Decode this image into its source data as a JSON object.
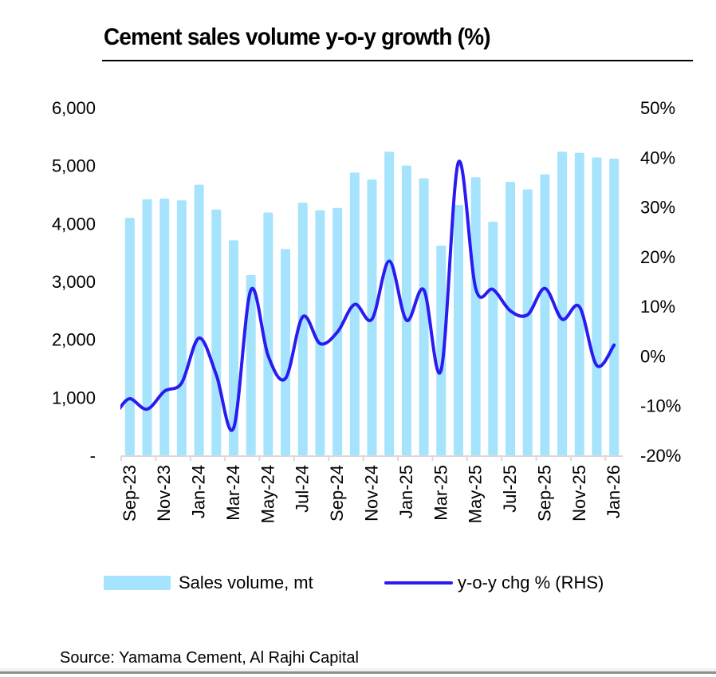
{
  "colors": {
    "bars": "#a6e3fd",
    "line": "#2a1cf0",
    "axis": "#d9d9d9",
    "text": "#000000"
  },
  "legend": {
    "bar_label": "Sales volume, mt",
    "line_label": "y-o-y chg % (RHS)"
  },
  "source": "Source: Yamama Cement, Al Rajhi Capital",
  "chart_data": {
    "type": "bar",
    "title": "Cement sales volume y-o-y growth (%)",
    "xlabel": "",
    "ylabel": "",
    "categories": [
      "Sep-23",
      "Oct-23",
      "Nov-23",
      "Dec-23",
      "Jan-24",
      "Feb-24",
      "Mar-24",
      "Apr-24",
      "May-24",
      "Jun-24",
      "Jul-24",
      "Aug-24",
      "Sep-24",
      "Oct-24",
      "Nov-24",
      "Dec-24",
      "Jan-25",
      "Feb-25",
      "Mar-25",
      "Apr-25",
      "May-25",
      "Jun-25",
      "Jul-25",
      "Aug-25",
      "Sep-25",
      "Oct-25",
      "Nov-25",
      "Dec-25",
      "Jan-26"
    ],
    "x_tick_labels": [
      "Sep-23",
      "Nov-23",
      "Jan-24",
      "Mar-24",
      "May-24",
      "Jul-24",
      "Sep-24",
      "Nov-24",
      "Jan-25",
      "Mar-25",
      "May-25",
      "Jul-25",
      "Sep-25",
      "Nov-25",
      "Jan-26"
    ],
    "series": [
      {
        "name": "Sales volume, mt",
        "type": "bar",
        "axis": "left",
        "values": [
          4100,
          4420,
          4430,
          4400,
          4670,
          4240,
          3710,
          3110,
          4190,
          3560,
          4360,
          4230,
          4270,
          4880,
          4760,
          5240,
          5000,
          4780,
          3620,
          4320,
          4800,
          4030,
          4720,
          4590,
          4850,
          5240,
          5220,
          5140,
          5120
        ]
      },
      {
        "name": "y-o-y chg % (RHS)",
        "type": "line",
        "axis": "right",
        "smooth": true,
        "values": [
          -8.6,
          -10.7,
          -7.1,
          -5.4,
          3.6,
          -3.8,
          -14.5,
          13.3,
          0.0,
          -4.5,
          7.9,
          2.5,
          4.8,
          10.4,
          7.4,
          19.1,
          7.2,
          13.3,
          -2.8,
          39.0,
          13.6,
          13.4,
          9.1,
          8.3,
          13.6,
          7.4,
          9.9,
          -1.9,
          2.2
        ]
      }
    ],
    "y_left": {
      "ylim": [
        0,
        6000
      ],
      "ticks": [
        0,
        1000,
        2000,
        3000,
        4000,
        5000,
        6000
      ],
      "tick_labels": [
        "-",
        "1,000",
        "2,000",
        "3,000",
        "4,000",
        "5,000",
        "6,000"
      ]
    },
    "y_right": {
      "ylim": [
        -20,
        50
      ],
      "ticks": [
        -20,
        -10,
        0,
        10,
        20,
        30,
        40,
        50
      ],
      "tick_labels": [
        "-20%",
        "-10%",
        "0%",
        "10%",
        "20%",
        "30%",
        "40%",
        "50%"
      ]
    },
    "grid": false,
    "legend_position": "bottom"
  }
}
